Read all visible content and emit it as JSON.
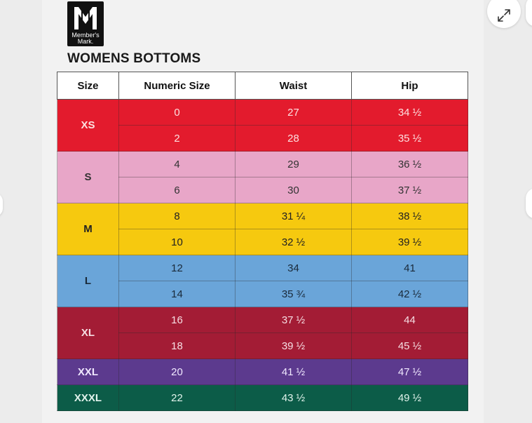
{
  "logo": {
    "line1": "Member's",
    "line2": "Mark."
  },
  "title": "WOMENS BOTTOMS",
  "table": {
    "headers": [
      "Size",
      "Numeric Size",
      "Waist",
      "Hip"
    ],
    "groups": [
      {
        "size": "XS",
        "rows": [
          {
            "numeric": "0",
            "waist": "27",
            "hip": "34 ½"
          },
          {
            "numeric": "2",
            "waist": "28",
            "hip": "35 ½"
          }
        ]
      },
      {
        "size": "S",
        "rows": [
          {
            "numeric": "4",
            "waist": "29",
            "hip": "36 ½"
          },
          {
            "numeric": "6",
            "waist": "30",
            "hip": "37 ½"
          }
        ]
      },
      {
        "size": "M",
        "rows": [
          {
            "numeric": "8",
            "waist": "31 ¼",
            "hip": "38 ½"
          },
          {
            "numeric": "10",
            "waist": "32 ½",
            "hip": "39 ½"
          }
        ]
      },
      {
        "size": "L",
        "rows": [
          {
            "numeric": "12",
            "waist": "34",
            "hip": "41"
          },
          {
            "numeric": "14",
            "waist": "35 ¾",
            "hip": "42 ½"
          }
        ]
      },
      {
        "size": "XL",
        "rows": [
          {
            "numeric": "16",
            "waist": "37 ½",
            "hip": "44"
          },
          {
            "numeric": "18",
            "waist": "39 ½",
            "hip": "45 ½"
          }
        ]
      },
      {
        "size": "XXL",
        "rows": [
          {
            "numeric": "20",
            "waist": "41 ½",
            "hip": "47 ½"
          }
        ]
      },
      {
        "size": "XXXL",
        "rows": [
          {
            "numeric": "22",
            "waist": "43 ½",
            "hip": "49 ½"
          }
        ]
      }
    ]
  },
  "colors": {
    "xs": "#e31b2d",
    "s": "#e8a6c8",
    "m": "#f6c90f",
    "l": "#6aa5d9",
    "xl": "#a31c35",
    "xxl": "#5c3a8e",
    "xxxl": "#0c5c48"
  },
  "icons": {
    "expand": "expand-icon"
  }
}
